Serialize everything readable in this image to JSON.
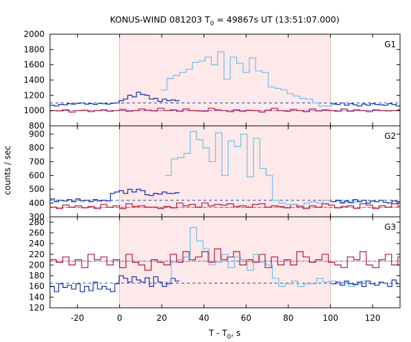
{
  "chart_data": {
    "type": "line",
    "title": {
      "prefix": "KONUS-WIND 081203 T",
      "sub": "0",
      "suffix": " = 49867s UT (13:51:07.000)"
    },
    "xlabel": {
      "prefix": "T - T",
      "sub": "0",
      "suffix": ", s"
    },
    "ylabel": "counts / sec",
    "xlim": [
      -33,
      133
    ],
    "xticks": [
      -20,
      0,
      20,
      40,
      60,
      80,
      100,
      120
    ],
    "highlight_interval": [
      0,
      100
    ],
    "colors": {
      "highlight": "#fde8ea",
      "blue": "#1f3bb3",
      "lightblue": "#74c4ea",
      "red": "#b2182b",
      "pink": "#e68ae0"
    },
    "panels": [
      {
        "label": "G1",
        "ylim": [
          800,
          2000
        ],
        "yticks": [
          800,
          1000,
          1200,
          1400,
          1600,
          1800,
          2000
        ],
        "background_level": 1100,
        "background_level_soft": 1000,
        "series": {
          "blue": {
            "x_start": -33,
            "bin": 2.048,
            "values": [
              1070,
              1060,
              1080,
              1075,
              1090,
              1085,
              1095,
              1100,
              1085,
              1090,
              1080,
              1095,
              1090,
              1085,
              1095,
              1100,
              1130,
              1150,
              1200,
              1180,
              1240,
              1210,
              1200,
              1150,
              1160,
              1120,
              1150,
              1130,
              1140,
              1130
            ]
          },
          "lightblue": {
            "x_start": 19.5,
            "bin": 3.0,
            "values": [
              1270,
              1420,
              1460,
              1500,
              1540,
              1630,
              1650,
              1700,
              1600,
              1770,
              1410,
              1700,
              1620,
              1500,
              1690,
              1520,
              1500,
              1310,
              1290,
              1270,
              1220,
              1190,
              1160,
              1150,
              1100,
              1060,
              1060,
              1080
            ]
          },
          "blue_tail": {
            "x_start": 100.5,
            "bin": 2.048,
            "values": [
              1090,
              1080,
              1100,
              1070,
              1090,
              1075,
              1060,
              1085,
              1070,
              1090,
              1080,
              1075,
              1070,
              1090,
              1080,
              1060
            ]
          },
          "red": {
            "x_start": -33,
            "bin": 3.0,
            "values": [
              1000,
              995,
              1010,
              980,
              1000,
              1005,
              985,
              1000,
              1010,
              990,
              1000,
              1015,
              990,
              1000,
              1020,
              1005,
              995,
              1030,
              1000,
              1010,
              990,
              1020,
              1000,
              995,
              990,
              1030,
              1010,
              1000,
              985,
              1010,
              990,
              1005,
              1000,
              980,
              1005,
              1030,
              1000,
              990,
              1015,
              1000,
              985,
              1020,
              995,
              1010,
              1000,
              990,
              1020,
              990,
              1010,
              1000,
              985,
              1010,
              1000,
              995,
              1000,
              1010
            ]
          }
        }
      },
      {
        "label": "G2",
        "ylim": [
          300,
          960
        ],
        "yticks": [
          300,
          400,
          500,
          600,
          700,
          800,
          900
        ],
        "background_level": 420,
        "background_level_soft": 368,
        "series": {
          "blue": {
            "x_start": -33,
            "bin": 2.048,
            "values": [
              430,
              410,
              420,
              415,
              425,
              410,
              430,
              415,
              420,
              410,
              425,
              415,
              420,
              415,
              470,
              480,
              490,
              470,
              500,
              480,
              500,
              490,
              460,
              455,
              470,
              465,
              480,
              470,
              470,
              475
            ]
          },
          "lightblue": {
            "x_start": 21.5,
            "bin": 3.0,
            "values": [
              600,
              720,
              730,
              760,
              920,
              860,
              800,
              700,
              910,
              600,
              850,
              810,
              900,
              590,
              870,
              650,
              600,
              420,
              400,
              390,
              390,
              380,
              400,
              410,
              400,
              420,
              410,
              415,
              405,
              400,
              410,
              420
            ]
          },
          "blue_tail": {
            "x_start": 100.5,
            "bin": 2.048,
            "values": [
              410,
              420,
              400,
              415,
              405,
              425,
              410,
              420,
              400,
              415,
              410,
              420,
              405,
              400,
              415,
              410
            ]
          },
          "red": {
            "x_start": -33,
            "bin": 3.0,
            "values": [
              370,
              360,
              385,
              370,
              380,
              365,
              375,
              360,
              390,
              370,
              380,
              360,
              395,
              375,
              380,
              370,
              370,
              360,
              375,
              365,
              400,
              380,
              390,
              370,
              400,
              380,
              390,
              385,
              395,
              375,
              380,
              370,
              390,
              395,
              370,
              380,
              375,
              365,
              390,
              375,
              360,
              380,
              370,
              395,
              385,
              365,
              375,
              380,
              360,
              395,
              385,
              360,
              380,
              370,
              395,
              375
            ]
          }
        }
      },
      {
        "label": "G3",
        "ylim": [
          120,
          290
        ],
        "yticks": [
          120,
          140,
          160,
          180,
          200,
          220,
          240,
          260,
          280
        ],
        "background_level": 166,
        "background_level_soft": 207,
        "series": {
          "blue": {
            "x_start": -33,
            "bin": 2.048,
            "values": [
              160,
              150,
              165,
              158,
              162,
              155,
              165,
              150,
              160,
              152,
              168,
              155,
              160,
              155,
              150,
              165,
              180,
              175,
              168,
              178,
              172,
              168,
              176,
              160,
              178,
              168,
              160,
              165,
              175,
              170
            ]
          },
          "lightblue": {
            "x_start": 21.5,
            "bin": 3.0,
            "values": [
              168,
              205,
              210,
              215,
              270,
              245,
              230,
              200,
              205,
              220,
              195,
              215,
              210,
              190,
              220,
              205,
              200,
              175,
              160,
              165,
              170,
              160,
              165,
              165,
              175,
              168,
              170,
              165,
              168,
              160,
              165,
              170
            ]
          },
          "blue_tail": {
            "x_start": 100.5,
            "bin": 2.048,
            "values": [
              165,
              168,
              162,
              170,
              165,
              163,
              168,
              160,
              170,
              165,
              162,
              168,
              166,
              160,
              172,
              165
            ]
          },
          "red": {
            "x_start": -33,
            "bin": 3.0,
            "values": [
              210,
              205,
              215,
              200,
              210,
              195,
              220,
              210,
              215,
              200,
              210,
              195,
              220,
              205,
              200,
              190,
              210,
              205,
              200,
              220,
              205,
              225,
              210,
              215,
              225,
              205,
              230,
              210,
              215,
              225,
              200,
              210,
              205,
              220,
              195,
              215,
              200,
              210,
              200,
              225,
              215,
              205,
              210,
              220,
              205,
              200,
              195,
              215,
              210,
              225,
              200,
              195,
              210,
              220,
              200,
              215
            ]
          }
        }
      }
    ]
  }
}
